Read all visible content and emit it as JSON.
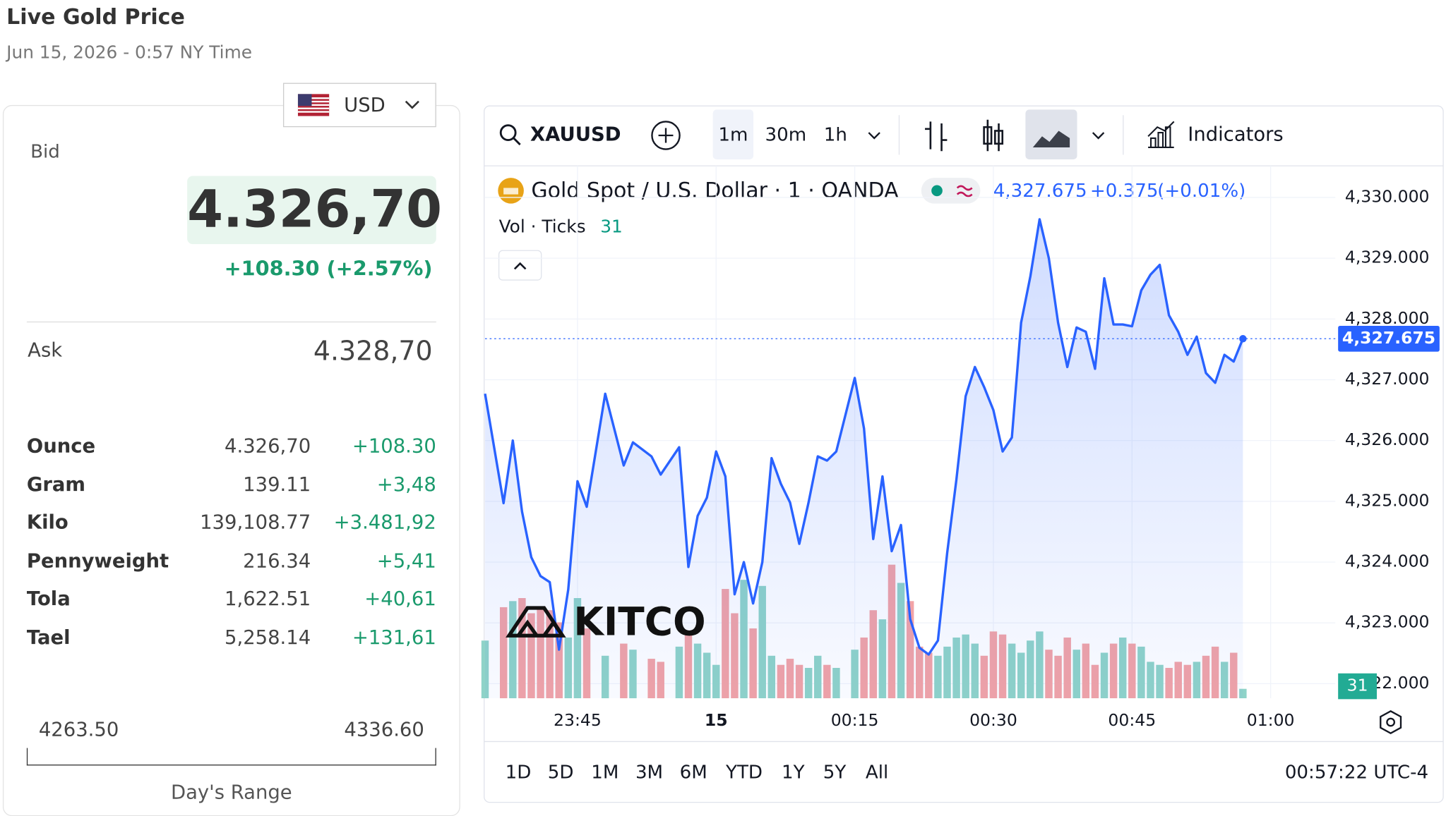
{
  "header": {
    "title": "Live Gold Price",
    "timestamp": "Jun 15, 2026 - 0:57 NY Time"
  },
  "currency": "USD",
  "quote": {
    "bid_label": "Bid",
    "bid": "4.326,70",
    "change": "+108.30 (+2.57%)",
    "ask_label": "Ask",
    "ask": "4.328,70"
  },
  "table": {
    "rows": [
      [
        "Ounce",
        "4.326,70",
        "+108.30"
      ],
      [
        "Gram",
        "139.11",
        "+3,48"
      ],
      [
        "Kilo",
        "139,108.77",
        "+3.481,92"
      ],
      [
        "Pennyweight",
        "216.34",
        "+5,41"
      ],
      [
        "Tola",
        "1,622.51",
        "+40,61"
      ],
      [
        "Tael",
        "5,258.14",
        "+131,61"
      ]
    ]
  },
  "day_range": {
    "low": "4263.50",
    "high": "4336.60",
    "label": "Day's Range"
  },
  "toolbar": {
    "symbol": "XAUUSD",
    "intervals": [
      "1m",
      "30m",
      "1h"
    ],
    "indicators": "Indicators"
  },
  "legend": {
    "title": "Gold Spot / U.S. Dollar · 1 · OANDA",
    "price": "4,327.675",
    "change": "+0.375",
    "change_pct": "(+0.01%)",
    "vol_label": "Vol · Ticks"
  },
  "watermark": "KITCO",
  "ranges": [
    "1D",
    "5D",
    "1M",
    "3M",
    "6M",
    "YTD",
    "1Y",
    "5Y",
    "All"
  ],
  "clock": "00:57:22 UTC-4",
  "chart_data": {
    "type": "line",
    "x": [
      "23:35",
      "23:37",
      "23:38",
      "23:39",
      "23:40",
      "23:41",
      "23:42",
      "23:43",
      "23:44",
      "23:45",
      "23:46",
      "23:48",
      "23:50",
      "23:51",
      "23:53",
      "23:54",
      "23:56",
      "23:57",
      "23:58",
      "23:59",
      "00:00",
      "00:01",
      "00:02",
      "00:03",
      "00:04",
      "00:05",
      "00:06",
      "00:07",
      "00:08",
      "00:09",
      "00:10",
      "00:11",
      "00:12",
      "00:13",
      "00:15",
      "00:16",
      "00:17",
      "00:18",
      "00:19",
      "00:20",
      "00:21",
      "00:22",
      "00:23",
      "00:24",
      "00:25",
      "00:26",
      "00:27",
      "00:28",
      "00:29",
      "00:30",
      "00:31",
      "00:32",
      "00:33",
      "00:34",
      "00:35",
      "00:36",
      "00:37",
      "00:38",
      "00:39",
      "00:40",
      "00:41",
      "00:42",
      "00:43",
      "00:44",
      "00:45",
      "00:46",
      "00:47",
      "00:48",
      "00:49",
      "00:50",
      "00:51",
      "00:52",
      "00:53",
      "00:54",
      "00:55",
      "00:56",
      "00:57"
    ],
    "series": [
      {
        "name": "Gold Spot / U.S. Dollar",
        "color": "#2962ff",
        "values": [
          4326.77,
          4324.97,
          4326.0,
          4324.83,
          4324.08,
          4323.77,
          4323.67,
          4322.56,
          4323.55,
          4325.33,
          4324.91,
          4326.77,
          4325.59,
          4325.97,
          4325.74,
          4325.44,
          4325.89,
          4323.92,
          4324.76,
          4325.06,
          4325.82,
          4325.41,
          4323.47,
          4324.0,
          4323.32,
          4324.0,
          4325.71,
          4325.29,
          4324.98,
          4324.3,
          4324.98,
          4325.74,
          4325.67,
          4325.82,
          4327.03,
          4326.2,
          4324.38,
          4325.41,
          4324.18,
          4324.61,
          4323.06,
          4322.59,
          4322.48,
          4322.71,
          4324.15,
          4325.36,
          4326.73,
          4327.21,
          4326.88,
          4326.5,
          4325.82,
          4326.05,
          4327.94,
          4328.7,
          4329.64,
          4329.0,
          4327.94,
          4327.21,
          4327.86,
          4327.79,
          4327.18,
          4328.67,
          4327.91,
          4327.91,
          4327.88,
          4328.47,
          4328.73,
          4328.89,
          4328.06,
          4327.79,
          4327.41,
          4327.71,
          4327.11,
          4326.95,
          4327.41,
          4327.3,
          4327.675
        ]
      }
    ],
    "volume": {
      "up_color": "#8fd3c8",
      "down_color": "#f2a3a6",
      "values": [
        190,
        300,
        320,
        330,
        280,
        300,
        290,
        250,
        200,
        330,
        230,
        140,
        180,
        160,
        130,
        120,
        170,
        210,
        180,
        150,
        110,
        360,
        280,
        390,
        230,
        370,
        140,
        110,
        130,
        110,
        100,
        140,
        110,
        100,
        160,
        200,
        290,
        260,
        440,
        380,
        320,
        170,
        150,
        140,
        170,
        200,
        210,
        180,
        140,
        220,
        210,
        180,
        150,
        190,
        220,
        160,
        140,
        200,
        160,
        180,
        110,
        150,
        180,
        200,
        180,
        170,
        120,
        110,
        100,
        120,
        110,
        120,
        140,
        170,
        120,
        150,
        31
      ]
    },
    "xlim": [
      "23:35",
      "01:07"
    ],
    "xticks": [
      "23:45",
      {
        "value": "00:00",
        "label": "15"
      },
      "00:15",
      "00:30",
      "00:45",
      "01:00"
    ],
    "ylim": [
      4321.76,
      4330.52
    ],
    "yticks": [
      {
        "value": 4322,
        "label": "4,322.000"
      },
      {
        "value": 4323,
        "label": "4,323.000"
      },
      {
        "value": 4324,
        "label": "4,324.000"
      },
      {
        "value": 4325,
        "label": "4,325.000"
      },
      {
        "value": 4326,
        "label": "4,326.000"
      },
      {
        "value": 4327,
        "label": "4,327.000"
      },
      {
        "value": 4328,
        "label": "4,328.000"
      },
      {
        "value": 4329,
        "label": "4,329.000"
      },
      {
        "value": 4330,
        "label": "4,330.000"
      }
    ],
    "grid": true
  }
}
